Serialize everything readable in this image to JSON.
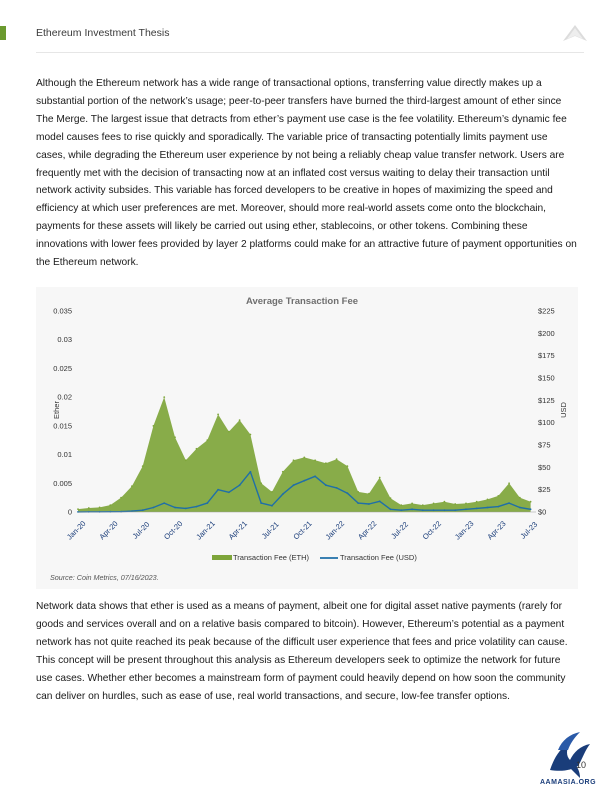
{
  "header": {
    "title": "Ethereum Investment Thesis"
  },
  "body": {
    "paragraph_1": "Although the Ethereum network has a wide range of transactional options, transferring value directly makes up a substantial portion of the network’s usage; peer-to-peer transfers have burned the third-largest amount of ether since The Merge.  The largest issue that detracts from ether’s payment use case is the fee volatility. Ethereum’s dynamic fee model causes fees to rise quickly and sporadically. The variable price of transacting potentially limits payment use cases, while degrading the Ethereum user experience by not being a reliably cheap value transfer network. Users are frequently met with the decision of transacting now at an inflated cost versus waiting to delay their transaction until network activity subsides. This variable has forced developers to be creative in hopes of maximizing the speed and efficiency at which user preferences are met. Moreover, should more real-world assets come onto the blockchain, payments for these assets will likely be carried out using ether, stablecoins, or other tokens. Combining these innovations with lower fees provided by layer 2 platforms could make for an attractive future of payment opportunities on the Ethereum network.",
    "paragraph_2": "Network data shows that ether is used as a means of payment, albeit one for digital asset native payments (rarely for goods and services overall and on a relative basis compared to bitcoin). However, Ethereum’s potential as a payment network has not quite reached its peak because of the difficult user experience that fees and price volatility can cause. This concept will be present throughout this analysis as Ethereum developers seek to optimize the network for future use cases. Whether ether becomes a mainstream form of payment could heavily depend on how soon the community can deliver on hurdles, such as ease of use, real world transactions, and secure, low-fee transfer options."
  },
  "figure": {
    "source": "Source: Coin Metrics, 07/16/2023."
  },
  "chart_data": {
    "type": "area",
    "title": "Average Transaction Fee",
    "ylabel_left": "Ether",
    "ylabel_right": "USD",
    "ylim_left": [
      0,
      0.035
    ],
    "ylim_right": [
      0,
      225
    ],
    "yticks_left": [
      "0",
      "0.005",
      "0.01",
      "0.015",
      "0.02",
      "0.025",
      "0.03",
      "0.035"
    ],
    "yticks_right": [
      "$0",
      "$25",
      "$50",
      "$75",
      "$100",
      "$125",
      "$150",
      "$175",
      "$200",
      "$225"
    ],
    "xticks": [
      "Jan-20",
      "Apr-20",
      "Jul-20",
      "Oct-20",
      "Jan-21",
      "Apr-21",
      "Jul-21",
      "Oct-21",
      "Jan-22",
      "Apr-22",
      "Jul-22",
      "Oct-22",
      "Jan-23",
      "Apr-23",
      "Jul-23"
    ],
    "grid": false,
    "legend_position": "bottom",
    "colors": {
      "eth": "#7ea53a",
      "usd": "#1f6fa8"
    },
    "series": [
      {
        "name": "Transaction Fee (ETH)",
        "axis": "left",
        "style": "area",
        "x": [
          "2020-01",
          "2020-02",
          "2020-03",
          "2020-04",
          "2020-05",
          "2020-06",
          "2020-07",
          "2020-08",
          "2020-09",
          "2020-10",
          "2020-11",
          "2020-12",
          "2021-01",
          "2021-02",
          "2021-03",
          "2021-04",
          "2021-05",
          "2021-06",
          "2021-07",
          "2021-08",
          "2021-09",
          "2021-10",
          "2021-11",
          "2021-12",
          "2022-01",
          "2022-02",
          "2022-03",
          "2022-04",
          "2022-05",
          "2022-06",
          "2022-07",
          "2022-08",
          "2022-09",
          "2022-10",
          "2022-11",
          "2022-12",
          "2023-01",
          "2023-02",
          "2023-03",
          "2023-04",
          "2023-05",
          "2023-06",
          "2023-07"
        ],
        "values": [
          0.0005,
          0.0007,
          0.0008,
          0.0012,
          0.0025,
          0.0045,
          0.008,
          0.015,
          0.02,
          0.013,
          0.009,
          0.011,
          0.0125,
          0.017,
          0.014,
          0.016,
          0.0135,
          0.005,
          0.0035,
          0.007,
          0.009,
          0.0095,
          0.009,
          0.0085,
          0.0092,
          0.008,
          0.0035,
          0.0032,
          0.006,
          0.0024,
          0.0012,
          0.0015,
          0.0012,
          0.0015,
          0.0018,
          0.0014,
          0.0015,
          0.0018,
          0.0022,
          0.0028,
          0.005,
          0.0025,
          0.0018
        ]
      },
      {
        "name": "Transaction Fee (USD)",
        "axis": "right",
        "style": "line",
        "x": [
          "2020-01",
          "2020-02",
          "2020-03",
          "2020-04",
          "2020-05",
          "2020-06",
          "2020-07",
          "2020-08",
          "2020-09",
          "2020-10",
          "2020-11",
          "2020-12",
          "2021-01",
          "2021-02",
          "2021-03",
          "2021-04",
          "2021-05",
          "2021-06",
          "2021-07",
          "2021-08",
          "2021-09",
          "2021-10",
          "2021-11",
          "2021-12",
          "2022-01",
          "2022-02",
          "2022-03",
          "2022-04",
          "2022-05",
          "2022-06",
          "2022-07",
          "2022-08",
          "2022-09",
          "2022-10",
          "2022-11",
          "2022-12",
          "2023-01",
          "2023-02",
          "2023-03",
          "2023-04",
          "2023-05",
          "2023-06",
          "2023-07"
        ],
        "values": [
          0.1,
          0.2,
          0.2,
          0.3,
          0.5,
          1,
          2,
          5,
          10,
          5,
          4,
          6,
          10,
          25,
          22,
          30,
          45,
          10,
          7,
          20,
          30,
          35,
          40,
          30,
          27,
          21,
          10,
          9,
          12,
          3,
          2,
          3,
          2,
          2,
          2,
          2,
          3,
          4,
          5,
          6,
          10,
          5,
          3
        ]
      }
    ]
  }
}
